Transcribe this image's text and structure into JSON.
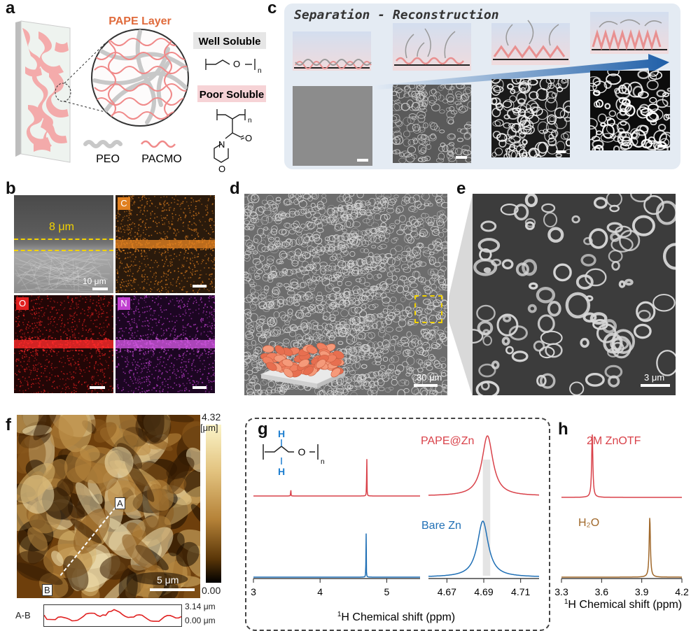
{
  "panel_labels": {
    "a": "a",
    "b": "b",
    "c": "c",
    "d": "d",
    "e": "e",
    "f": "f",
    "g": "g",
    "h": "h"
  },
  "panel_a": {
    "title": "PAPE Layer",
    "well_soluble": "Well Soluble",
    "poor_soluble": "Poor Soluble",
    "peo_label": "PEO",
    "pacmo_label": "PACMO",
    "subscript_n1": "n",
    "subscript_n2": "n",
    "atom_O": "O",
    "atom_O2": "O",
    "atom_N": "N",
    "atom_O3": "O",
    "colors": {
      "peo": "#c8c8c8",
      "pacmo": "#f08a8a",
      "title": "#e06b3c"
    }
  },
  "panel_b": {
    "thickness": "8 μm",
    "scale": "10 μm",
    "map_C": "C",
    "map_O": "O",
    "map_N": "N",
    "colors": {
      "C": "#e08020",
      "O": "#e02020",
      "N": "#c040d0"
    }
  },
  "panel_c": {
    "title": "Separation - Reconstruction"
  },
  "panel_d": {
    "scale": "30 μm"
  },
  "panel_e": {
    "scale": "3 μm"
  },
  "panel_f": {
    "cbar_max": "4.32",
    "cbar_unit": "[μm]",
    "cbar_min": "0.00",
    "scale": "5 μm",
    "point_A": "A",
    "point_B": "B",
    "profile_label": "A-B",
    "profile_max": "3.14 μm",
    "profile_min": "0.00 μm"
  },
  "chart_data": [
    {
      "type": "line",
      "panel": "g",
      "xlabel": "1H Chemical shift (ppm)",
      "xlabel_sup": "1",
      "xlabel_main": "H Chemical shift (ppm)",
      "axis_left": {
        "xlim": [
          3,
          5.5
        ],
        "ticks": [
          "3",
          "4",
          "5"
        ],
        "tick_values": [
          3,
          4,
          5
        ]
      },
      "axis_right": {
        "xlim": [
          4.66,
          4.72
        ],
        "ticks": [
          "4.67",
          "4.69",
          "4.71"
        ],
        "tick_values": [
          4.67,
          4.69,
          4.71
        ]
      },
      "highlight_band": [
        4.6895,
        4.6935
      ],
      "series": [
        {
          "name": "PAPE@Zn",
          "color": "#d9424a",
          "peaks_left": [
            {
              "x": 3.56,
              "h": 0.18
            },
            {
              "x": 4.7,
              "h": 1.0
            }
          ],
          "peak_right": {
            "x": 4.692,
            "h": 1.0
          }
        },
        {
          "name": "Bare Zn",
          "color": "#1f6fb5",
          "peaks_left": [
            {
              "x": 4.69,
              "h": 1.0
            }
          ],
          "peak_right": {
            "x": 4.6895,
            "h": 1.0
          }
        }
      ],
      "molecule": {
        "H_top": "H",
        "H_bottom": "H",
        "O": "O",
        "n": "n"
      }
    },
    {
      "type": "line",
      "panel": "h",
      "xlabel_sup": "1",
      "xlabel_main": "H Chemical shift (ppm)",
      "xlim": [
        3.3,
        4.2
      ],
      "ticks": [
        "3.3",
        "3.6",
        "3.9",
        "4.2"
      ],
      "tick_values": [
        3.3,
        3.6,
        3.9,
        4.2
      ],
      "series": [
        {
          "name": "2M ZnOTF",
          "color": "#d9424a",
          "peak": 3.53
        },
        {
          "name": "H₂O",
          "color": "#a0682a",
          "peak": 3.96
        }
      ]
    }
  ]
}
